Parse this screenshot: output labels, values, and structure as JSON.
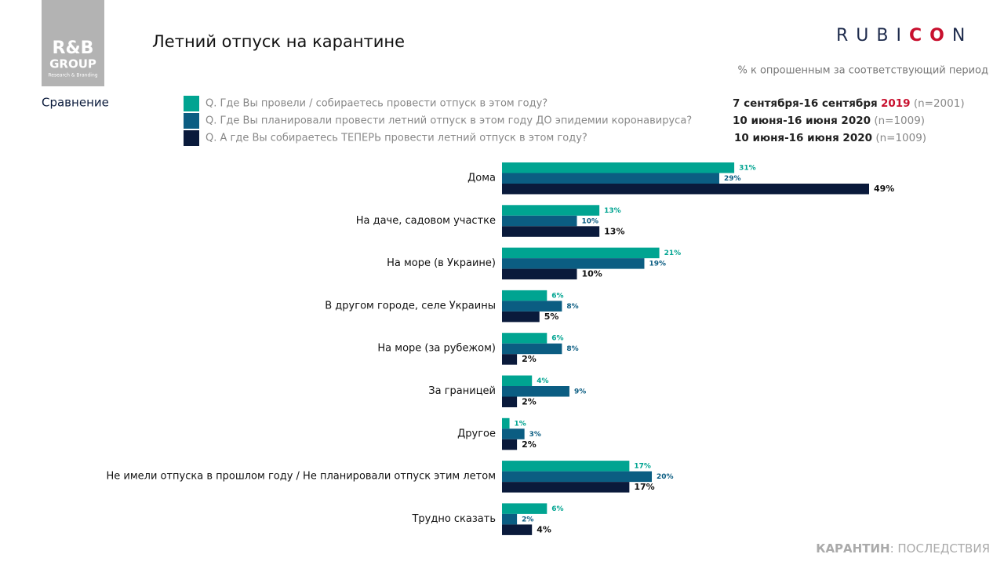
{
  "header": {
    "title": "Летний отпуск на карантине",
    "subtitle": "% к опрошенным за соответствующий период",
    "section": "Сравнение"
  },
  "logo_left": {
    "line1": "R&B",
    "line2": "GROUP",
    "line3": "Research & Branding"
  },
  "logo_right": {
    "part1": "RUBI",
    "part2": "CO",
    "part3": "N"
  },
  "footer": {
    "bold": "КАРАНТИН",
    "rest": ": ПОСЛЕДСТВИЯ"
  },
  "chart_data": {
    "type": "hbar",
    "categories": [
      "Дома",
      "На даче, садовом участке",
      "На море (в Украине)",
      "В другом городе, селе Украины",
      "На море (за рубежом)",
      "За границей",
      "Другое",
      "Не имели отпуска в прошлом году / Не планировали отпуск этим летом",
      "Трудно сказать"
    ],
    "series": [
      {
        "name": "Q. Где Вы провели / собираетесь провести отпуск в этом году?",
        "color": "#00a491",
        "period": "7 сентября-16 сентября",
        "year": "2019",
        "n": "(n=2001)",
        "values": [
          31,
          13,
          21,
          6,
          6,
          4,
          1,
          17,
          6
        ],
        "value_labels": [
          "31%",
          "13%",
          "21%",
          "6%",
          "6%",
          "4%",
          "1%",
          "17%",
          "6%"
        ]
      },
      {
        "name": "Q. Где Вы планировали провести летний отпуск в этом году ДО эпидемии коронавируса?",
        "color": "#0b5d82",
        "period": "10 июня-16 июня 2020",
        "n": "(n=1009)",
        "values": [
          29,
          10,
          19,
          8,
          8,
          9,
          3,
          20,
          2
        ],
        "value_labels": [
          "29%",
          "10%",
          "19%",
          "8%",
          "8%",
          "9%",
          "3%",
          "20%",
          "2%"
        ]
      },
      {
        "name": "Q. А где Вы собираетесь ТЕПЕРЬ провести летний отпуск в этом году?",
        "color": "#0a1a3b",
        "period": "10 июня-16 июня 2020",
        "n": "(n=1009)",
        "values": [
          49,
          13,
          10,
          5,
          2,
          2,
          2,
          17,
          4
        ],
        "value_labels": [
          "49%",
          "13%",
          "10%",
          "5%",
          "2%",
          "2%",
          "2%",
          "17%",
          "4%"
        ]
      }
    ]
  }
}
